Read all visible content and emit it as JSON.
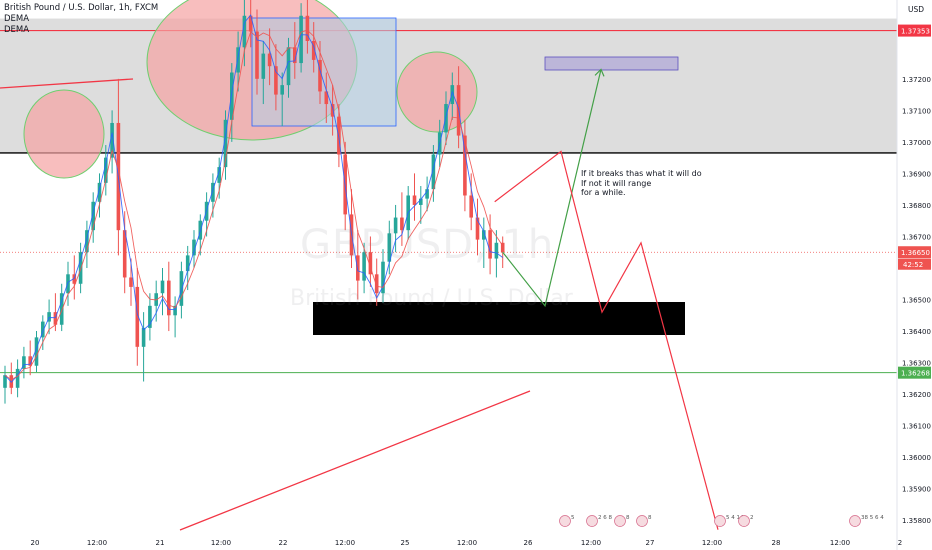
{
  "header": {
    "symbol_line": "British Pound / U.S. Dollar, 1h, FXCM",
    "indicator1": "DEMA",
    "indicator2": "DEMA"
  },
  "watermark": {
    "ticker": "GBPUSD, 1h",
    "name": "British Pound / U.S. Dollar"
  },
  "annotation_note": "If it breaks thas what it will do\nIf not it will range\nfor a while.",
  "currency_label": "USD",
  "price_tags": {
    "resistance": "1.37353",
    "current": "1.36650",
    "countdown": "42:52",
    "support": "1.36268"
  },
  "event_markers": [
    "5",
    "2 6 8",
    "8",
    "8",
    "5 4 14",
    "2",
    "38 5 6 4"
  ],
  "colors": {
    "up": "#26a69a",
    "down": "#ef5350",
    "resistance_line": "#f23645",
    "support_line": "#4caf50",
    "zone": "#d9d9d9",
    "dema1": "#2962ff",
    "dema2": "#ef5350",
    "circle_fill": "#f5a3a3",
    "projection_red": "#f23645",
    "projection_green": "#43a047",
    "target_box": "#9c8fd6"
  },
  "chart_data": {
    "type": "candlestick",
    "title": "British Pound / U.S. Dollar, 1h, FXCM",
    "yticks": [
      "1.37353",
      "1.37200",
      "1.37100",
      "1.37000",
      "1.36900",
      "1.36800",
      "1.36700",
      "1.36650",
      "1.36500",
      "1.36400",
      "1.36300",
      "1.36268",
      "1.36200",
      "1.36100",
      "1.36000",
      "1.35900",
      "1.35800"
    ],
    "xticks": [
      "20",
      "12:00",
      "21",
      "12:00",
      "22",
      "12:00",
      "25",
      "12:00",
      "26",
      "12:00",
      "27",
      "12:00",
      "28",
      "12:00",
      "2"
    ],
    "ylim": [
      1.3575,
      1.3745
    ],
    "levels": {
      "resistance": 1.37353,
      "support": 1.36268,
      "zone_bottom": 1.36965,
      "current": 1.3665
    },
    "series": [
      {
        "name": "GBPUSD",
        "ohlc": [
          [
            1.3622,
            1.3629,
            1.3617,
            1.3626
          ],
          [
            1.3626,
            1.363,
            1.362,
            1.3622
          ],
          [
            1.3622,
            1.3631,
            1.3619,
            1.3628
          ],
          [
            1.3628,
            1.3635,
            1.3625,
            1.3632
          ],
          [
            1.3632,
            1.3637,
            1.3626,
            1.3629
          ],
          [
            1.3629,
            1.364,
            1.3627,
            1.3638
          ],
          [
            1.3638,
            1.3645,
            1.3634,
            1.3643
          ],
          [
            1.3643,
            1.365,
            1.3639,
            1.3646
          ],
          [
            1.3646,
            1.3652,
            1.364,
            1.3642
          ],
          [
            1.3642,
            1.3655,
            1.364,
            1.3652
          ],
          [
            1.3652,
            1.3662,
            1.3648,
            1.3658
          ],
          [
            1.3658,
            1.3664,
            1.365,
            1.3655
          ],
          [
            1.3655,
            1.3668,
            1.3652,
            1.3665
          ],
          [
            1.3665,
            1.3675,
            1.366,
            1.3672
          ],
          [
            1.3672,
            1.3684,
            1.3668,
            1.3681
          ],
          [
            1.3681,
            1.369,
            1.3676,
            1.3687
          ],
          [
            1.3687,
            1.3699,
            1.3683,
            1.3695
          ],
          [
            1.3695,
            1.371,
            1.369,
            1.3706
          ],
          [
            1.3706,
            1.372,
            1.3664,
            1.3672
          ],
          [
            1.3672,
            1.3678,
            1.3652,
            1.3657
          ],
          [
            1.3657,
            1.3663,
            1.3648,
            1.3654
          ],
          [
            1.3654,
            1.366,
            1.3629,
            1.3635
          ],
          [
            1.3635,
            1.3646,
            1.3624,
            1.3641
          ],
          [
            1.3641,
            1.3652,
            1.3637,
            1.3648
          ],
          [
            1.3648,
            1.3656,
            1.3643,
            1.3652
          ],
          [
            1.3652,
            1.366,
            1.3645,
            1.3656
          ],
          [
            1.3656,
            1.3662,
            1.364,
            1.3645
          ],
          [
            1.3645,
            1.3651,
            1.3638,
            1.3648
          ],
          [
            1.3648,
            1.3662,
            1.3644,
            1.3659
          ],
          [
            1.3659,
            1.3667,
            1.3653,
            1.3664
          ],
          [
            1.3664,
            1.3672,
            1.366,
            1.3669
          ],
          [
            1.3669,
            1.3677,
            1.3664,
            1.3675
          ],
          [
            1.3675,
            1.3684,
            1.367,
            1.3681
          ],
          [
            1.3681,
            1.369,
            1.3676,
            1.3687
          ],
          [
            1.3687,
            1.3695,
            1.3682,
            1.3692
          ],
          [
            1.3692,
            1.371,
            1.3688,
            1.3707
          ],
          [
            1.3707,
            1.3725,
            1.37,
            1.3722
          ],
          [
            1.3722,
            1.3735,
            1.3716,
            1.373
          ],
          [
            1.373,
            1.3745,
            1.3724,
            1.374
          ],
          [
            1.374,
            1.3748,
            1.373,
            1.3735
          ],
          [
            1.3735,
            1.3742,
            1.3715,
            1.372
          ],
          [
            1.372,
            1.3732,
            1.3712,
            1.3728
          ],
          [
            1.3728,
            1.3736,
            1.3718,
            1.3724
          ],
          [
            1.3724,
            1.3731,
            1.371,
            1.3715
          ],
          [
            1.3715,
            1.3722,
            1.3705,
            1.3718
          ],
          [
            1.3718,
            1.3733,
            1.3714,
            1.373
          ],
          [
            1.373,
            1.3738,
            1.372,
            1.3725
          ],
          [
            1.3725,
            1.3744,
            1.3722,
            1.374
          ],
          [
            1.374,
            1.3745,
            1.3728,
            1.3732
          ],
          [
            1.3732,
            1.3738,
            1.3722,
            1.3726
          ],
          [
            1.3726,
            1.3732,
            1.3712,
            1.3716
          ],
          [
            1.3716,
            1.3722,
            1.3706,
            1.3712
          ],
          [
            1.3712,
            1.3718,
            1.3702,
            1.3708
          ],
          [
            1.3708,
            1.3712,
            1.3692,
            1.3696
          ],
          [
            1.3696,
            1.37,
            1.3672,
            1.3677
          ],
          [
            1.3677,
            1.3685,
            1.366,
            1.3664
          ],
          [
            1.3664,
            1.3672,
            1.365,
            1.3656
          ],
          [
            1.3656,
            1.3668,
            1.3652,
            1.3665
          ],
          [
            1.3665,
            1.367,
            1.3654,
            1.3658
          ],
          [
            1.3658,
            1.3663,
            1.3648,
            1.3652
          ],
          [
            1.3652,
            1.3666,
            1.3649,
            1.3662
          ],
          [
            1.3662,
            1.3675,
            1.3658,
            1.3671
          ],
          [
            1.3671,
            1.368,
            1.3665,
            1.3676
          ],
          [
            1.3676,
            1.3684,
            1.3667,
            1.3672
          ],
          [
            1.3672,
            1.3686,
            1.3669,
            1.3683
          ],
          [
            1.3683,
            1.369,
            1.3675,
            1.368
          ],
          [
            1.368,
            1.3686,
            1.3674,
            1.3682
          ],
          [
            1.3682,
            1.3689,
            1.3678,
            1.3685
          ],
          [
            1.3685,
            1.3699,
            1.3681,
            1.3696
          ],
          [
            1.3696,
            1.3707,
            1.3692,
            1.3703
          ],
          [
            1.3703,
            1.3716,
            1.3699,
            1.3712
          ],
          [
            1.3712,
            1.3722,
            1.3707,
            1.3718
          ],
          [
            1.3718,
            1.3724,
            1.3698,
            1.3702
          ],
          [
            1.3702,
            1.3707,
            1.3678,
            1.3683
          ],
          [
            1.3683,
            1.369,
            1.3672,
            1.3676
          ],
          [
            1.3676,
            1.3682,
            1.3664,
            1.3669
          ],
          [
            1.3669,
            1.3676,
            1.366,
            1.3672
          ],
          [
            1.3672,
            1.3677,
            1.3658,
            1.3663
          ],
          [
            1.3663,
            1.3672,
            1.3657,
            1.3668
          ],
          [
            1.3668,
            1.367,
            1.366,
            1.3665
          ]
        ]
      },
      {
        "name": "DEMA"
      },
      {
        "name": "DEMA"
      }
    ],
    "projections": {
      "breakout_path": [
        [
          1.3665,
          "now"
        ],
        [
          1.3648,
          "dip"
        ],
        [
          1.3723,
          "target"
        ]
      ],
      "range_path": [
        [
          1.3665,
          "now"
        ],
        [
          1.3697,
          "up"
        ],
        [
          1.3645,
          "down"
        ],
        [
          1.3668,
          "up2"
        ],
        [
          1.3576,
          "breakdown"
        ]
      ]
    },
    "grid": false,
    "legend": "top-left"
  }
}
